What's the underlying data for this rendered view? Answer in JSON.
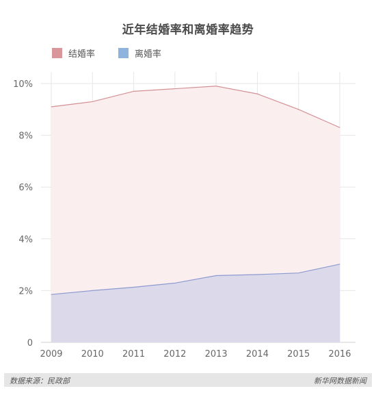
{
  "chart_data": {
    "type": "area",
    "title": "近年结婚率和离婚率趋势",
    "x": [
      "2009",
      "2010",
      "2011",
      "2012",
      "2013",
      "2014",
      "2015",
      "2016"
    ],
    "yticks": [
      "0",
      "2%",
      "4%",
      "6%",
      "8%",
      "10%"
    ],
    "ylim": [
      0,
      10
    ],
    "grid": true,
    "legend_position": "top-left",
    "series": [
      {
        "name": "结婚率",
        "values": [
          9.1,
          9.3,
          9.7,
          9.8,
          9.9,
          9.6,
          9.0,
          8.3
        ],
        "line_color": "#d48f94",
        "fill_color": "#fbeeee",
        "legend_color": "#d9979c"
      },
      {
        "name": "离婚率",
        "values": [
          1.85,
          2.0,
          2.13,
          2.29,
          2.58,
          2.62,
          2.68,
          3.02
        ],
        "line_color": "#8c9ad0",
        "fill_color": "#dcdaea",
        "legend_color": "#8eb3dd"
      }
    ]
  },
  "footer": {
    "source": "数据来源：民政部",
    "publisher": "新华网数据新闻"
  }
}
